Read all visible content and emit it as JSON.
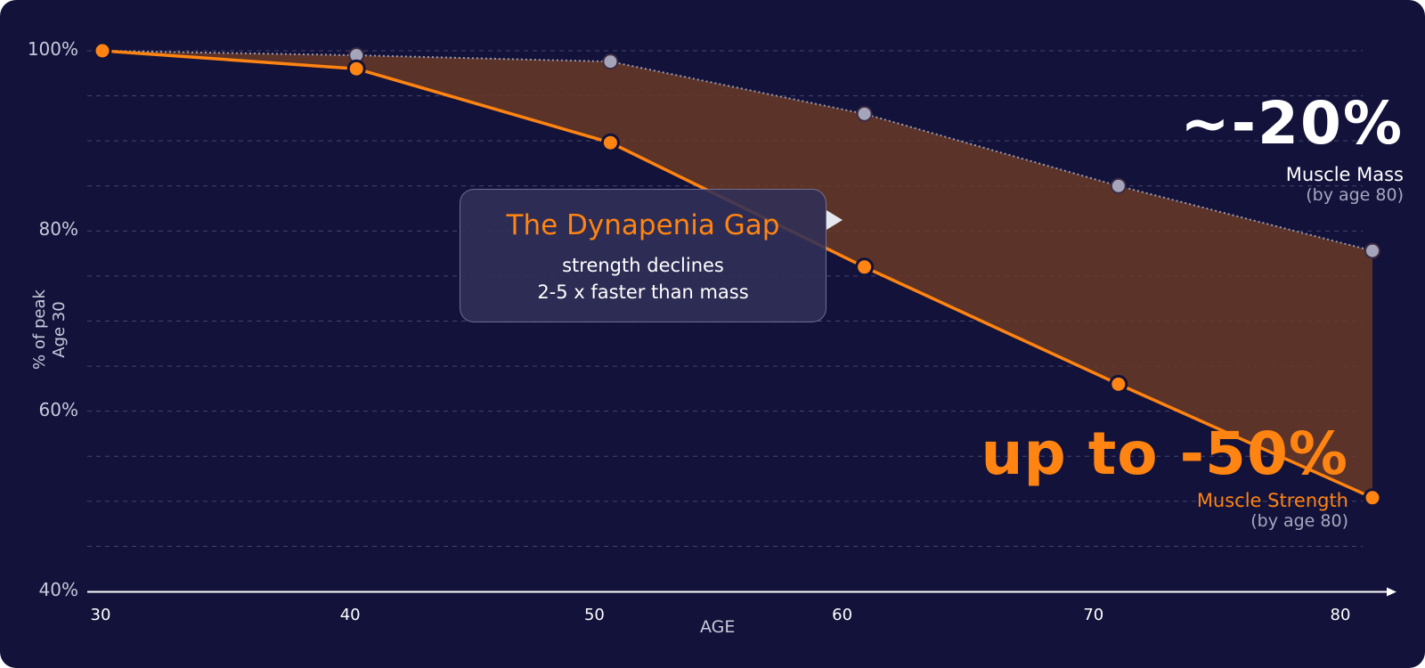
{
  "chart_data": {
    "type": "line",
    "xlabel": "AGE",
    "ylabel": "% of peak\nAge 30",
    "x": [
      30,
      40,
      50,
      60,
      70,
      80
    ],
    "xlim": [
      30,
      80
    ],
    "ylim": [
      40,
      100
    ],
    "yticks": [
      "100%",
      "80%",
      "60%",
      "40%"
    ],
    "xticks": [
      "30",
      "40",
      "50",
      "60",
      "70",
      "80"
    ],
    "grid": true,
    "series": [
      {
        "name": "Muscle Mass",
        "values": [
          100,
          99.5,
          98.8,
          93,
          85,
          77.8
        ],
        "color": "#9a9ab0",
        "style": "dotted"
      },
      {
        "name": "Muscle Strength",
        "values": [
          100,
          98,
          89.8,
          76,
          63,
          50.4
        ],
        "color": "#ff8412",
        "style": "solid"
      }
    ],
    "fill_between": {
      "color": "#6b3a26",
      "label": "The Dynapenia Gap"
    },
    "annotations": {
      "gap_title": "The Dynapenia Gap",
      "gap_line1": "strength declines",
      "gap_line2": "2-5 x faster than mass",
      "mass_value": "~-20%",
      "mass_label": "Muscle Mass",
      "mass_sub": "(by age 80)",
      "strength_value": "up to -50%",
      "strength_label": "Muscle Strength",
      "strength_sub": "(by age 80)"
    }
  }
}
